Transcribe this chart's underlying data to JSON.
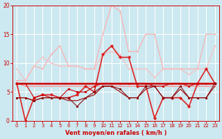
{
  "background_color": "#cce8f0",
  "grid_color": "#ffffff",
  "xlabel": "Vent moyen/en rafales ( km/h )",
  "xlabel_color": "#cc0000",
  "tick_color": "#cc0000",
  "xlim": [
    -0.5,
    23.5
  ],
  "ylim": [
    0,
    20
  ],
  "yticks": [
    0,
    5,
    10,
    15,
    20
  ],
  "xticks": [
    0,
    1,
    2,
    3,
    4,
    5,
    6,
    7,
    8,
    9,
    10,
    11,
    12,
    13,
    14,
    15,
    16,
    17,
    18,
    19,
    20,
    21,
    22,
    23
  ],
  "series": [
    {
      "y": [
        7,
        7,
        9.5,
        9,
        11.5,
        13,
        9.5,
        9.5,
        9,
        9,
        15,
        20,
        19,
        12,
        12,
        15,
        15,
        9,
        9,
        9,
        9,
        9,
        15,
        15
      ],
      "color": "#ffaaaa",
      "lw": 0.8,
      "marker": "+"
    },
    {
      "y": [
        9,
        7,
        9.5,
        11,
        10,
        9.5,
        9.5,
        9.5,
        9,
        9,
        11.5,
        12,
        11.5,
        9,
        9,
        9,
        7.5,
        9,
        9,
        9,
        8,
        9,
        9,
        13
      ],
      "color": "#ffbbbb",
      "lw": 0.8,
      "marker": "+"
    },
    {
      "y": [
        6.5,
        6,
        6,
        6,
        6,
        6,
        6,
        6,
        6,
        6,
        6,
        6,
        6,
        6,
        6,
        6,
        6,
        6,
        6,
        6,
        6,
        6,
        6,
        6
      ],
      "color": "#ff8888",
      "lw": 0.8,
      "marker": "+"
    },
    {
      "y": [
        6.5,
        0,
        4,
        4.5,
        4.5,
        4,
        4,
        4.5,
        6,
        5,
        11.5,
        13,
        11,
        11,
        6,
        6,
        0.5,
        4,
        4,
        4,
        2.5,
        6.5,
        9,
        6.5
      ],
      "color": "#dd2222",
      "lw": 1.2,
      "marker": "D"
    },
    {
      "y": [
        6.5,
        6.5,
        6.5,
        6.5,
        6.5,
        6.5,
        6.5,
        6.5,
        6.5,
        6.5,
        6.5,
        6.5,
        6.5,
        6.5,
        6.5,
        6.5,
        6.5,
        6.5,
        6.5,
        6.5,
        6.5,
        6.5,
        6.5,
        6.5
      ],
      "color": "#cc0000",
      "lw": 1.8,
      "marker": null
    },
    {
      "y": [
        6.5,
        6.5,
        4,
        4.5,
        4,
        4,
        5.5,
        5,
        5,
        6,
        6.5,
        6.5,
        6.5,
        6.5,
        6.5,
        6.5,
        6,
        6,
        6.5,
        6.5,
        6,
        6.5,
        6.5,
        6.5
      ],
      "color": "#cc0000",
      "lw": 0.8,
      "marker": "s"
    },
    {
      "y": [
        4,
        4,
        3.5,
        4,
        4,
        4,
        4,
        2.5,
        4,
        5,
        6,
        6,
        5.5,
        4,
        4,
        6,
        6,
        4,
        4,
        6,
        4,
        4,
        4,
        6.5
      ],
      "color": "#881111",
      "lw": 0.8,
      "marker": "s"
    },
    {
      "y": [
        4,
        4,
        3.5,
        4,
        4,
        4,
        3.5,
        3.5,
        4,
        4.5,
        6,
        6,
        5,
        4,
        4,
        5.5,
        6,
        4,
        4,
        5.5,
        4,
        4,
        4,
        6
      ],
      "color": "#990000",
      "lw": 0.8,
      "marker": null
    }
  ]
}
